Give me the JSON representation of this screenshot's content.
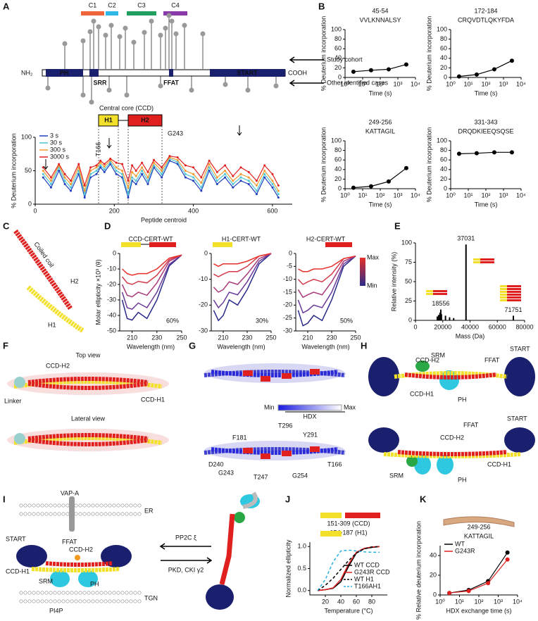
{
  "panel_labels": [
    "A",
    "B",
    "C",
    "D",
    "E",
    "F",
    "G",
    "H",
    "I",
    "J",
    "K"
  ],
  "domain_map": {
    "clusters": [
      "C1",
      "C2",
      "C3",
      "C4"
    ],
    "nterm": "NH₂",
    "cterm": "COOH",
    "domains": [
      "PH",
      "SRR",
      "FFAT",
      "START"
    ],
    "arrows": [
      "Study cohort",
      "Other identified cases"
    ],
    "core": "Central core (CCD)",
    "helices": [
      "H1",
      "H2"
    ]
  },
  "structure_c": [
    "Coiled coil",
    "H2",
    "H1"
  ],
  "views_f": {
    "labels": [
      "Top view",
      "Lateral view"
    ],
    "parts": [
      "CCD-H2",
      "CCD-H1",
      "Linker"
    ]
  },
  "hdx_g": {
    "scale": [
      "Min",
      "Max",
      "HDX"
    ],
    "residues": [
      "T296",
      "F181",
      "Y291",
      "D240",
      "G243",
      "T247",
      "G254",
      "T166"
    ]
  },
  "model_h": {
    "top": [
      "CCD-H2",
      "SRM",
      "FFAT",
      "START",
      "CCD-H1",
      "PH"
    ],
    "bottom": [
      "FFAT",
      "START",
      "CCD-H2",
      "SRM",
      "PH",
      "CCD-H1"
    ]
  },
  "model_i": {
    "labels": [
      "VAP-A",
      "ER",
      "START",
      "FFAT",
      "CCD-H2",
      "CCD-H1",
      "SRM",
      "PH",
      "PI4P",
      "TGN"
    ],
    "arrows": [
      "PP2C ξ",
      "PKD, CKI γ2"
    ]
  },
  "chart_data": [
    {
      "type": "line",
      "ylabel": "% Deuterium incorporation",
      "xlabel": "Peptide centroid",
      "annotations": [
        "T166",
        "G243"
      ],
      "x": [
        20,
        40,
        60,
        75,
        90,
        110,
        125,
        140,
        155,
        165,
        175,
        190,
        205,
        220,
        235,
        245,
        255,
        270,
        285,
        300,
        320,
        340,
        360,
        380,
        400,
        420,
        440,
        460,
        480,
        500,
        520,
        540,
        560,
        580,
        600,
        615
      ],
      "series": [
        {
          "name": "3 s",
          "color": "#1f3fbf",
          "values": [
            40,
            25,
            50,
            30,
            20,
            45,
            10,
            40,
            45,
            55,
            48,
            60,
            45,
            40,
            10,
            35,
            30,
            45,
            30,
            55,
            40,
            65,
            60,
            40,
            35,
            20,
            50,
            30,
            40,
            25,
            35,
            30,
            15,
            40,
            25,
            10
          ]
        },
        {
          "name": "30 s",
          "color": "#4cc6d6",
          "values": [
            45,
            30,
            55,
            35,
            25,
            50,
            15,
            45,
            50,
            58,
            52,
            63,
            50,
            45,
            15,
            40,
            35,
            50,
            35,
            58,
            45,
            68,
            63,
            45,
            40,
            25,
            55,
            35,
            45,
            30,
            40,
            35,
            20,
            45,
            30,
            15
          ]
        },
        {
          "name": "300 s",
          "color": "#f29a30",
          "values": [
            50,
            35,
            58,
            40,
            30,
            55,
            20,
            50,
            55,
            62,
            56,
            66,
            55,
            50,
            25,
            48,
            42,
            55,
            40,
            62,
            50,
            70,
            66,
            50,
            45,
            32,
            60,
            40,
            50,
            35,
            45,
            40,
            28,
            50,
            35,
            20
          ]
        },
        {
          "name": "3000 s",
          "color": "#e02020",
          "values": [
            55,
            40,
            60,
            45,
            35,
            60,
            28,
            55,
            58,
            65,
            60,
            68,
            62,
            60,
            35,
            58,
            50,
            62,
            48,
            66,
            55,
            72,
            70,
            58,
            55,
            40,
            65,
            48,
            58,
            42,
            55,
            48,
            35,
            58,
            45,
            28
          ]
        }
      ],
      "xlim": [
        0,
        650
      ],
      "xticks": [
        0,
        200,
        400,
        600
      ],
      "ylim": [
        0,
        100
      ],
      "yticks": [
        0,
        50,
        100
      ],
      "markers": true,
      "legend": "upper left"
    },
    {
      "type": "line",
      "title": "45-54",
      "subtitle": "VVLKNNALSY",
      "ylabel": "% Deuterium incorporation",
      "xlabel": "Time (s)",
      "x": [
        3,
        30,
        300,
        3000
      ],
      "series": [
        {
          "color": "#000000",
          "values": [
            12,
            15,
            17,
            27
          ]
        }
      ],
      "xlog": true,
      "xlim": [
        1,
        10000
      ],
      "xticks": [
        {
          "value": 1,
          "label": "10⁰"
        },
        {
          "value": 10,
          "label": "10¹"
        },
        {
          "value": 100,
          "label": "10²"
        },
        {
          "value": 1000,
          "label": "10³"
        },
        {
          "value": 10000,
          "label": "10⁴"
        }
      ],
      "ylim": [
        0,
        100
      ],
      "yticks": [
        0,
        20,
        40,
        60,
        80,
        100
      ],
      "markers": true
    },
    {
      "type": "line",
      "title": "172-184",
      "subtitle": "CRQVDTLQKYFDA",
      "ylabel": "% Deuterium incorporation",
      "xlabel": "Time (s)",
      "x": [
        3,
        30,
        300,
        3000
      ],
      "series": [
        {
          "color": "#000000",
          "values": [
            2,
            6,
            17,
            35
          ]
        }
      ],
      "xlog": true,
      "xlim": [
        1,
        10000
      ],
      "xticks": [
        {
          "value": 1,
          "label": "10⁰"
        },
        {
          "value": 10,
          "label": "10¹"
        },
        {
          "value": 100,
          "label": "10²"
        },
        {
          "value": 1000,
          "label": "10³"
        },
        {
          "value": 10000,
          "label": "10⁴"
        }
      ],
      "ylim": [
        0,
        100
      ],
      "yticks": [
        0,
        20,
        40,
        60,
        80,
        100
      ],
      "markers": true
    },
    {
      "type": "line",
      "title": "249-256",
      "subtitle": "KATTAGIL",
      "ylabel": "% Deuterium incorporation",
      "xlabel": "Time (s)",
      "x": [
        3,
        30,
        300,
        3000
      ],
      "series": [
        {
          "color": "#000000",
          "values": [
            2,
            5,
            15,
            43
          ]
        }
      ],
      "xlog": true,
      "xlim": [
        1,
        10000
      ],
      "xticks": [
        {
          "value": 1,
          "label": "10⁰"
        },
        {
          "value": 10,
          "label": "10¹"
        },
        {
          "value": 100,
          "label": "10²"
        },
        {
          "value": 1000,
          "label": "10³"
        },
        {
          "value": 10000,
          "label": "10⁴"
        }
      ],
      "ylim": [
        0,
        100
      ],
      "yticks": [
        0,
        20,
        40,
        60,
        80,
        100
      ],
      "markers": true
    },
    {
      "type": "line",
      "title": "331-343",
      "subtitle": "DRQDKIEEQSQSE",
      "ylabel": "% Deuterium incorporation",
      "xlabel": "Time (s)",
      "x": [
        3,
        30,
        300,
        3000
      ],
      "series": [
        {
          "color": "#000000",
          "values": [
            73,
            74,
            76,
            76
          ]
        }
      ],
      "xlog": true,
      "xlim": [
        1,
        10000
      ],
      "xticks": [
        {
          "value": 1,
          "label": "10⁰"
        },
        {
          "value": 10,
          "label": "10¹"
        },
        {
          "value": 100,
          "label": "10²"
        },
        {
          "value": 1000,
          "label": "10³"
        },
        {
          "value": 10000,
          "label": "10⁴"
        }
      ],
      "ylim": [
        0,
        100
      ],
      "yticks": [
        0,
        20,
        40,
        60,
        80,
        100
      ],
      "markers": true
    },
    {
      "type": "line",
      "title": "CCD-CERT-WT",
      "annotation": "60%",
      "ylabel": "Molar ellipticity ×10³ (θ)",
      "xlabel": "Wavelength (nm)",
      "x": [
        202,
        206,
        210,
        215,
        222,
        230,
        240,
        250
      ],
      "series": [
        {
          "color": "#2a2a8a",
          "values": [
            -30,
            -42,
            -43,
            -38,
            -42,
            -30,
            -8,
            -1
          ]
        },
        {
          "color": "#6a3a9a",
          "values": [
            -25,
            -35,
            -36,
            -32,
            -35,
            -25,
            -7,
            -1
          ]
        },
        {
          "color": "#a83a7a",
          "values": [
            -20,
            -27,
            -28,
            -25,
            -27,
            -19,
            -5,
            -1
          ]
        },
        {
          "color": "#d43a4a",
          "values": [
            -15,
            -19,
            -20,
            -18,
            -19,
            -14,
            -4,
            -1
          ]
        },
        {
          "color": "#e8302a",
          "values": [
            -10,
            -13,
            -14,
            -13,
            -13,
            -10,
            -3,
            -1
          ]
        }
      ],
      "xlim": [
        200,
        250
      ],
      "xticks": [
        210,
        230,
        250
      ],
      "ylim": [
        -50,
        0
      ],
      "yticks": [
        -50,
        -40,
        -30,
        -20,
        -10,
        0
      ]
    },
    {
      "type": "line",
      "title": "H1-CERT-WT",
      "annotation": "30%",
      "xlabel": "Wavelength (nm)",
      "x": [
        202,
        206,
        210,
        215,
        222,
        230,
        240,
        250
      ],
      "series": [
        {
          "color": "#2a2a8a",
          "values": [
            -22,
            -26,
            -24,
            -18,
            -20,
            -14,
            -4,
            0
          ]
        },
        {
          "color": "#6a3a9a",
          "values": [
            -18,
            -21,
            -19,
            -15,
            -16,
            -11,
            -3,
            0
          ]
        },
        {
          "color": "#a83a7a",
          "values": [
            -13,
            -15,
            -14,
            -11,
            -12,
            -8,
            -2,
            0
          ]
        },
        {
          "color": "#d43a4a",
          "values": [
            -8,
            -9,
            -8,
            -7,
            -7,
            -5,
            -1,
            0
          ]
        },
        {
          "color": "#e8302a",
          "values": [
            -4,
            -5,
            -4,
            -4,
            -4,
            -3,
            -1,
            0
          ]
        }
      ],
      "xlim": [
        200,
        250
      ],
      "xticks": [
        210,
        230,
        250
      ],
      "ylim": [
        -30,
        0
      ],
      "yticks": [
        -30,
        -20,
        -10,
        0
      ]
    },
    {
      "type": "line",
      "title": "H2-CERT-WT",
      "annotation": "50%",
      "colorbar": [
        "Max",
        "Min"
      ],
      "xlabel": "Wavelength (nm)",
      "x": [
        202,
        206,
        210,
        215,
        222,
        230,
        240,
        250
      ],
      "series": [
        {
          "color": "#2a2a8a",
          "values": [
            -22,
            -28,
            -27,
            -24,
            -26,
            -18,
            -5,
            -1
          ]
        },
        {
          "color": "#6a3a9a",
          "values": [
            -18,
            -23,
            -22,
            -20,
            -21,
            -15,
            -4,
            -1
          ]
        },
        {
          "color": "#a83a7a",
          "values": [
            -14,
            -17,
            -16,
            -15,
            -16,
            -11,
            -3,
            -1
          ]
        },
        {
          "color": "#d43a4a",
          "values": [
            -10,
            -12,
            -11,
            -10,
            -11,
            -8,
            -2,
            -1
          ]
        },
        {
          "color": "#e8302a",
          "values": [
            -6,
            -7,
            -7,
            -6,
            -6,
            -5,
            -2,
            -1
          ]
        }
      ],
      "xlim": [
        200,
        250
      ],
      "xticks": [
        210,
        230,
        250
      ],
      "ylim": [
        -30,
        0
      ],
      "yticks": [
        -30,
        -25,
        -20,
        -15,
        -10,
        -5,
        0
      ]
    },
    {
      "type": "stem",
      "ylabel": "Relative intensity (%)",
      "xlabel": "Mass (Da)",
      "color": "#000000",
      "x": [
        16000,
        17000,
        18000,
        18556,
        19000,
        22000,
        25000,
        28000,
        37031,
        71751
      ],
      "values": [
        5,
        7,
        10,
        14,
        8,
        6,
        4,
        3,
        98,
        6
      ],
      "xlim": [
        0,
        80000
      ],
      "xticks": [
        0,
        20000,
        40000,
        60000,
        80000
      ],
      "ylim": [
        0,
        100
      ],
      "yticks": [
        0,
        25,
        50,
        75,
        100
      ]
    },
    {
      "type": "line",
      "title": "151-309 (CCD)",
      "subtitle": "154-187 (H1)",
      "ylabel": "Normalized ellipticity",
      "xlabel": "Temperature (°C)",
      "x": [
        10,
        20,
        30,
        40,
        50,
        60,
        70,
        80,
        90
      ],
      "series": [
        {
          "name": "WT CCD",
          "color": "#000000",
          "values": [
            0,
            0.02,
            0.05,
            0.2,
            0.55,
            0.85,
            0.95,
            0.98,
            1.0
          ]
        },
        {
          "name": "G243R CCD",
          "color": "#e02020",
          "values": [
            0,
            0.02,
            0.06,
            0.25,
            0.6,
            0.87,
            0.96,
            0.99,
            1.0
          ]
        },
        {
          "name": "WT H1",
          "color": "#000000",
          "dash": true,
          "values": [
            0,
            0.12,
            0.28,
            0.48,
            0.68,
            0.85,
            0.95,
            0.99,
            1.0
          ]
        },
        {
          "name": "T166AH1",
          "color": "#2ab0e0",
          "dash": true,
          "values": [
            0,
            0.25,
            0.65,
            0.9,
            0.92,
            0.9,
            0.88,
            0.87,
            0.87
          ]
        }
      ],
      "xlim": [
        0,
        100
      ],
      "xticks": [
        20,
        40,
        60,
        80
      ],
      "ylim": [
        -0.1,
        1.1
      ],
      "yticks": [
        {
          "value": 0,
          "label": "0.0"
        },
        {
          "value": 0.5,
          "label": "0.5"
        },
        {
          "value": 1,
          "label": "1.0"
        }
      ],
      "legend": "lower right"
    },
    {
      "type": "line",
      "title": "249-256",
      "subtitle": "KATTAGIL",
      "ylabel": "% Relative deuterium incorporation",
      "xlabel": "HDX exchange time (s)",
      "x": [
        3,
        30,
        300,
        3000
      ],
      "series": [
        {
          "name": "WT",
          "color": "#000000",
          "values": [
            2,
            5,
            14,
            43
          ]
        },
        {
          "name": "G243R",
          "color": "#e02020",
          "values": [
            2,
            4,
            12,
            36
          ]
        }
      ],
      "xlog": true,
      "xlim": [
        1,
        10000
      ],
      "xticks": [
        {
          "value": 1,
          "label": "10⁰"
        },
        {
          "value": 10,
          "label": "10¹"
        },
        {
          "value": 100,
          "label": "10²"
        },
        {
          "value": 1000,
          "label": "10³"
        },
        {
          "value": 10000,
          "label": "10⁴"
        }
      ],
      "ylim": [
        0,
        50
      ],
      "yticks": [
        0,
        20,
        40
      ],
      "markers": true,
      "legend": "upper left"
    }
  ]
}
